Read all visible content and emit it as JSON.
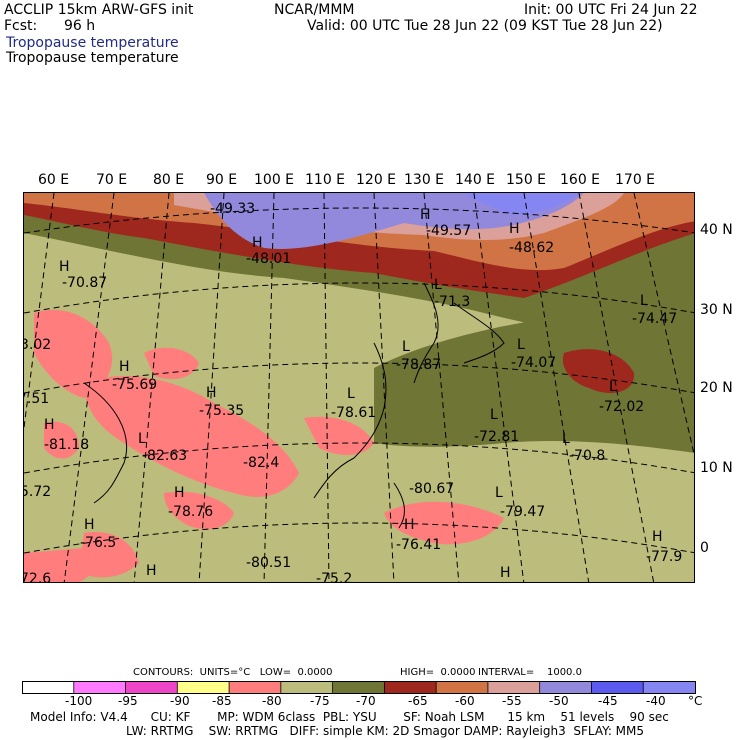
{
  "header": {
    "model": "ACCLIP 15km ARW-GFS init",
    "fcst_label": "Fcst:",
    "fcst_value": "96 h",
    "org": "NCAR/MMM",
    "init": "Init: 00 UTC Fri 24 Jun 22",
    "valid": "Valid: 00 UTC Tue 28 Jun 22 (09 KST Tue 28 Jun 22)",
    "field1": "Tropopause temperature",
    "field2": "Tropopause temperature"
  },
  "longitude_labels": [
    "60 E",
    "70 E",
    "80 E",
    "90 E",
    "100 E",
    "110 E",
    "120 E",
    "130 E",
    "140 E",
    "150 E",
    "160 E",
    "170 E"
  ],
  "latitude_labels": [
    "40 N",
    "30 N",
    "20 N",
    "10 N",
    "0"
  ],
  "map_labels": [
    {
      "text": "-49.33"
    },
    {
      "text": "H"
    },
    {
      "text": "-48.01"
    },
    {
      "text": "H"
    },
    {
      "text": "-49.57"
    },
    {
      "text": "H"
    },
    {
      "text": "-48.62"
    },
    {
      "text": "H"
    },
    {
      "text": "-70.87"
    },
    {
      "text": "L"
    },
    {
      "text": "-71.3"
    },
    {
      "text": "L"
    },
    {
      "text": "-74.47"
    },
    {
      "text": "3.02"
    },
    {
      "text": "L"
    },
    {
      "text": "-78.87"
    },
    {
      "text": "L"
    },
    {
      "text": "-74.07"
    },
    {
      "text": "H"
    },
    {
      "text": "-75.69"
    },
    {
      "text": "H"
    },
    {
      "text": "-75.35"
    },
    {
      "text": "L"
    },
    {
      "text": "-78.61"
    },
    {
      "text": "L"
    },
    {
      "text": "-72.02"
    },
    {
      "text": "7.51"
    },
    {
      "text": "L"
    },
    {
      "text": "-72.81"
    },
    {
      "text": "H"
    },
    {
      "text": "-81.18"
    },
    {
      "text": "L"
    },
    {
      "text": "-82.63"
    },
    {
      "text": "-82.4"
    },
    {
      "text": "-70.8"
    },
    {
      "text": "L"
    },
    {
      "text": "-80.67"
    },
    {
      "text": "5.72"
    },
    {
      "text": "H"
    },
    {
      "text": "-78.76"
    },
    {
      "text": "L"
    },
    {
      "text": "-79.47"
    },
    {
      "text": "H"
    },
    {
      "text": "-76.5"
    },
    {
      "text": "H"
    },
    {
      "text": "-76.41"
    },
    {
      "text": "-80.51"
    },
    {
      "text": "H"
    },
    {
      "text": "-77.9"
    },
    {
      "text": "72.6"
    },
    {
      "text": "H"
    },
    {
      "text": "-75.2"
    },
    {
      "text": "H"
    }
  ],
  "contours": {
    "units": "CONTOURS:  UNITS=°C   LOW=  0.0000",
    "high": "HIGH=  0.0000",
    "interval": "INTERVAL=    1000.0"
  },
  "colorbar": {
    "colors": [
      "#ffffff",
      "#ff7aff",
      "#ef45c8",
      "#ffff8a",
      "#ff7d7d",
      "#bcbc7d",
      "#6e7535",
      "#9e281d",
      "#d07445",
      "#dca09a",
      "#9389dc",
      "#5a5aee",
      "#8686f2"
    ],
    "labels": [
      "-100",
      "-95",
      "-90",
      "-85",
      "-80",
      "-75",
      "-70",
      "-65",
      "-60",
      "-55",
      "-50",
      "-45",
      "-40",
      "°C"
    ]
  },
  "footer": {
    "line1": "Model Info: V4.4      CU: KF       MP: WDM 6class  PBL: YSU       SF: Noah LSM      15 km    51 levels    90 sec",
    "line2": "LW: RRTMG    SW: RRTMG   DIFF: simple KM: 2D Smagor DAMP: Rayleigh3  SFLAY: MM5"
  }
}
